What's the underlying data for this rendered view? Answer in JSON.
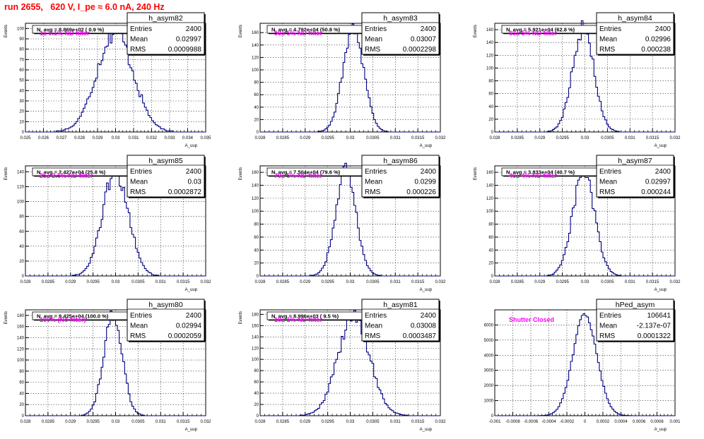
{
  "header": {
    "title": "run 2655,   620 V, I_pe ≈ 6.0 nA, 240 Hz"
  },
  "colors": {
    "histogram": "#000080",
    "title": "#ff0000",
    "annotation": "#ff00ff",
    "grid": "#000000"
  },
  "chart_data": [
    {
      "type": "histogram",
      "name": "h_asym82",
      "stats": {
        "entries": "2400",
        "mean": "0.02997",
        "rms": "0.0009988"
      },
      "navg": "N_avg = 8.869e+02 ( 0.9 %)",
      "annotation": "1± 0.1% ND filter",
      "xlabel": "A_uup",
      "ylabel": "Events",
      "xlim": [
        0.025,
        0.035
      ],
      "ylim": [
        0,
        105
      ],
      "xticks": [
        "0.025",
        "0.026",
        "0.027",
        "0.028",
        "0.029",
        "0.03",
        "0.031",
        "0.032",
        "0.033",
        "0.034",
        "0.035"
      ],
      "yticks": [
        "0",
        "10",
        "20",
        "30",
        "40",
        "50",
        "60",
        "70",
        "80",
        "90",
        "100"
      ],
      "dist": {
        "mean": 0.02997,
        "sigma": 0.0009988,
        "peak": 97,
        "bins": 100,
        "noise": 0.1
      },
      "grid": true,
      "legend": "top-right"
    },
    {
      "type": "histogram",
      "name": "h_asym83",
      "stats": {
        "entries": "2400",
        "mean": "0.03007",
        "rms": "0.0002298"
      },
      "navg": "N_avg = 4.792e+04 (50.8 %)",
      "annotation": "50± 5% ND filter",
      "xlabel": "A_uup",
      "ylabel": "Events",
      "xlim": [
        0.028,
        0.032
      ],
      "ylim": [
        0,
        175
      ],
      "xticks": [
        "0.028",
        "0.0285",
        "0.029",
        "0.0295",
        "0.03",
        "0.0305",
        "0.031",
        "0.0315",
        "0.032"
      ],
      "yticks": [
        "0",
        "20",
        "40",
        "60",
        "80",
        "100",
        "120",
        "140",
        "160"
      ],
      "dist": {
        "mean": 0.03007,
        "sigma": 0.0002298,
        "peak": 168,
        "bins": 100,
        "noise": 0.08
      },
      "grid": true,
      "legend": "top-right"
    },
    {
      "type": "histogram",
      "name": "h_asym84",
      "stats": {
        "entries": "2400",
        "mean": "0.02996",
        "rms": "0.000238"
      },
      "navg": "N_avg = 5.921e+04 (62.8 %)",
      "annotation": "63± 5% ND filter",
      "xlabel": "A_uup",
      "ylabel": "Events",
      "xlim": [
        0.028,
        0.032
      ],
      "ylim": [
        0,
        170
      ],
      "xticks": [
        "0.028",
        "0.0285",
        "0.029",
        "0.0295",
        "0.03",
        "0.0305",
        "0.031",
        "0.0315",
        "0.032"
      ],
      "yticks": [
        "0",
        "20",
        "40",
        "60",
        "80",
        "100",
        "120",
        "140",
        "160"
      ],
      "dist": {
        "mean": 0.02996,
        "sigma": 0.000238,
        "peak": 162,
        "bins": 100,
        "noise": 0.08
      },
      "grid": true,
      "legend": "top-right"
    },
    {
      "type": "histogram",
      "name": "h_asym85",
      "stats": {
        "entries": "2400",
        "mean": "0.03",
        "rms": "0.0002872"
      },
      "navg": "N_avg = 2.427e+04 (25.8 %)",
      "annotation": "25± 2.5% ND filter",
      "xlabel": "A_uup",
      "ylabel": "Events",
      "xlim": [
        0.028,
        0.032
      ],
      "ylim": [
        0,
        148
      ],
      "xticks": [
        "0.028",
        "0.0285",
        "0.029",
        "0.0295",
        "0.03",
        "0.0305",
        "0.031",
        "0.0315",
        "0.032"
      ],
      "yticks": [
        "0",
        "20",
        "40",
        "60",
        "80",
        "100",
        "120",
        "140"
      ],
      "dist": {
        "mean": 0.03,
        "sigma": 0.0002872,
        "peak": 140,
        "bins": 100,
        "noise": 0.09
      },
      "grid": true,
      "legend": "top-right"
    },
    {
      "type": "histogram",
      "name": "h_asym86",
      "stats": {
        "entries": "2400",
        "mean": "0.0299",
        "rms": "0.000226"
      },
      "navg": "N_avg = 7.504e+04 (79.6 %)",
      "annotation": "79± 5% ND filter",
      "xlabel": "A_uup",
      "ylabel": "Events",
      "xlim": [
        0.028,
        0.032
      ],
      "ylim": [
        0,
        170
      ],
      "xticks": [
        "0.028",
        "0.0285",
        "0.029",
        "0.0295",
        "0.03",
        "0.0305",
        "0.031",
        "0.0315",
        "0.032"
      ],
      "yticks": [
        "0",
        "20",
        "40",
        "60",
        "80",
        "100",
        "120",
        "140",
        "160"
      ],
      "dist": {
        "mean": 0.0299,
        "sigma": 0.000226,
        "peak": 162,
        "bins": 100,
        "noise": 0.08
      },
      "grid": true,
      "legend": "top-right"
    },
    {
      "type": "histogram",
      "name": "h_asym87",
      "stats": {
        "entries": "2400",
        "mean": "0.02997",
        "rms": "0.000244"
      },
      "navg": "N_avg = 3.833e+04 (40.7 %)",
      "annotation": "40± 4% ND filter",
      "xlabel": "A_uup",
      "ylabel": "Events",
      "xlim": [
        0.028,
        0.032
      ],
      "ylim": [
        0,
        170
      ],
      "xticks": [
        "0.028",
        "0.0285",
        "0.029",
        "0.0295",
        "0.03",
        "0.0305",
        "0.031",
        "0.0315",
        "0.032"
      ],
      "yticks": [
        "0",
        "20",
        "40",
        "60",
        "80",
        "100",
        "120",
        "140",
        "160"
      ],
      "dist": {
        "mean": 0.02997,
        "sigma": 0.000244,
        "peak": 160,
        "bins": 100,
        "noise": 0.08
      },
      "grid": true,
      "legend": "top-right"
    },
    {
      "type": "histogram",
      "name": "h_asym80",
      "stats": {
        "entries": "2400",
        "mean": "0.02994",
        "rms": "0.0002059"
      },
      "navg": "N_avg = 9.425e+04 (100.0 %)",
      "annotation": "100% (No filter)",
      "xlabel": "A_uup",
      "ylabel": "Events",
      "xlim": [
        0.028,
        0.032
      ],
      "ylim": [
        0,
        190
      ],
      "xticks": [
        "0.028",
        "0.0285",
        "0.029",
        "0.0295",
        "0.03",
        "0.0305",
        "0.031",
        "0.0315",
        "0.032"
      ],
      "yticks": [
        "0",
        "20",
        "40",
        "60",
        "80",
        "100",
        "120",
        "140",
        "160",
        "180"
      ],
      "dist": {
        "mean": 0.02994,
        "sigma": 0.0002059,
        "peak": 180,
        "bins": 100,
        "noise": 0.08
      },
      "grid": true,
      "legend": "top-right"
    },
    {
      "type": "histogram",
      "name": "h_asym81",
      "stats": {
        "entries": "2400",
        "mean": "0.03008",
        "rms": "0.0003487"
      },
      "navg": "N_avg = 8.996e+03 ( 9.5 %)",
      "annotation": "10± 1% ND filter",
      "xlabel": "A_uup",
      "ylabel": "Events",
      "xlim": [
        0.028,
        0.032
      ],
      "ylim": [
        0,
        188
      ],
      "xticks": [
        "0.028",
        "0.0285",
        "0.029",
        "0.0295",
        "0.03",
        "0.0305",
        "0.031",
        "0.0315",
        "0.032"
      ],
      "yticks": [
        "0",
        "20",
        "40",
        "60",
        "80",
        "100",
        "120",
        "140",
        "160",
        "180"
      ],
      "dist": {
        "mean": 0.03008,
        "sigma": 0.0003487,
        "peak": 178,
        "bins": 100,
        "noise": 0.1
      },
      "grid": true,
      "legend": "top-right"
    },
    {
      "type": "histogram",
      "name": "hPed_asym",
      "stats": {
        "entries": "106641",
        "mean": "-2.137e-07",
        "rms": "0.0001322"
      },
      "navg": "",
      "annotation": "Shutter Closed",
      "xlabel": "A_uup",
      "ylabel": "",
      "xlim": [
        -0.001,
        0.001
      ],
      "ylim": [
        0,
        7000
      ],
      "xticks": [
        "-0.001",
        "-0.0008",
        "-0.0006",
        "-0.0004",
        "-0.0002",
        "0",
        "0.0002",
        "0.0004",
        "0.0006",
        "0.0008",
        "0.001"
      ],
      "yticks": [
        "0",
        "1000",
        "2000",
        "3000",
        "4000",
        "5000",
        "6000"
      ],
      "dist": {
        "mean": 0.0,
        "sigma": 0.0001322,
        "peak": 6700,
        "bins": 100,
        "noise": 0.025
      },
      "grid": true,
      "legend": "top-right"
    }
  ]
}
